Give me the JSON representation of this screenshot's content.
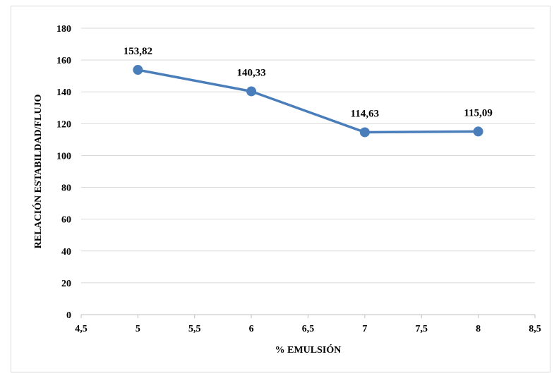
{
  "chart_data": {
    "type": "line",
    "title": "",
    "xlabel": "% EMULSIÓN",
    "ylabel": "RELACIÓN ESTABILDAD/FLUJO",
    "x_ticks": [
      "4,5",
      "5",
      "5,5",
      "6",
      "6,5",
      "7",
      "7,5",
      "8",
      "8,5"
    ],
    "y_ticks": [
      "0",
      "20",
      "40",
      "60",
      "80",
      "100",
      "120",
      "140",
      "160",
      "180"
    ],
    "xlim": [
      4.5,
      8.5
    ],
    "ylim": [
      0,
      180
    ],
    "grid": "horizontal",
    "legend": "none",
    "series": [
      {
        "x": [
          5,
          6,
          7,
          8
        ],
        "values": [
          153.82,
          140.33,
          114.63,
          115.09
        ],
        "labels": [
          "153,82",
          "140,33",
          "114,63",
          "115,09"
        ],
        "color": "#4a7ebb"
      }
    ]
  }
}
